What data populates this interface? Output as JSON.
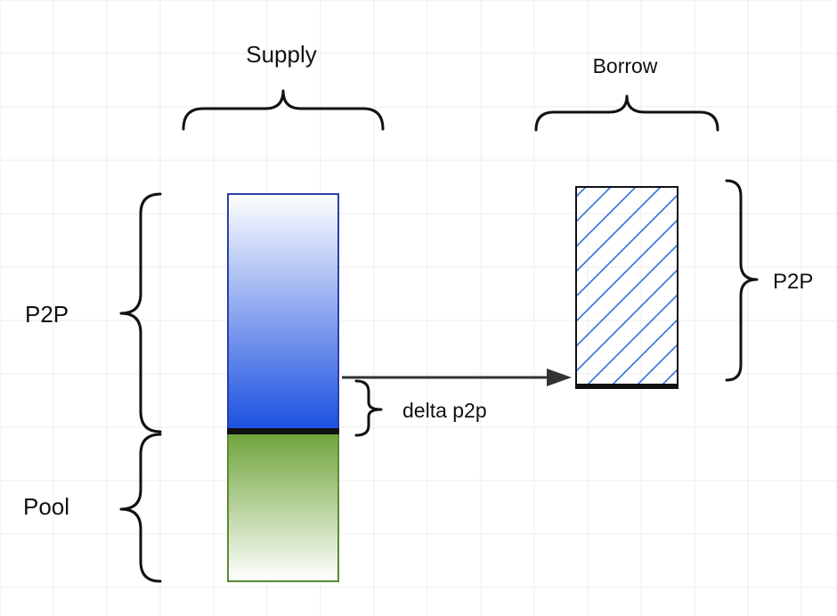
{
  "labels": {
    "supply": "Supply",
    "borrow": "Borrow",
    "p2p_supply": "P2P",
    "pool": "Pool",
    "delta": "delta p2p",
    "p2p_borrow": "P2P"
  },
  "colors": {
    "grid": "#ececec",
    "supply_p2p_top": "#ffffff",
    "supply_p2p_bottom": "#1a4fe0",
    "supply_p2p_border": "#2a3fa8",
    "pool_top": "#6fa43a",
    "pool_bottom": "#ffffff",
    "pool_border": "#5a8a32",
    "hatch": "#2f6fdd",
    "stroke": "#111111"
  }
}
